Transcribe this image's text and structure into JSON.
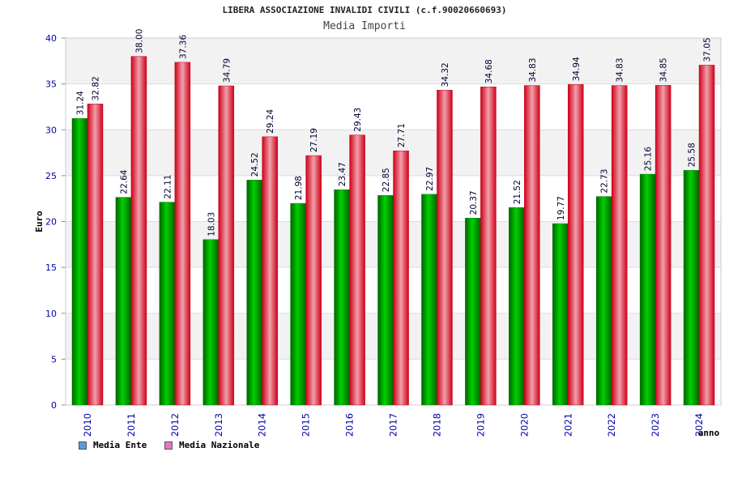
{
  "title": "LIBERA ASSOCIAZIONE INVALIDI CIVILI (c.f.90020660693)",
  "subtitle": "Media Importi",
  "colors": {
    "ente": "#00a800",
    "nazionale": "#e8001c",
    "axis_text": "#0000aa",
    "band": "#f2f2f2"
  },
  "legend": [
    {
      "label": "Media Ente",
      "color": "#5b9bd5"
    },
    {
      "label": "Media Nazionale",
      "color": "#e377c2"
    }
  ],
  "chart_data": {
    "type": "bar",
    "title": "LIBERA ASSOCIAZIONE INVALIDI CIVILI (c.f.90020660693)",
    "subtitle": "Media Importi",
    "xlabel": "anno",
    "ylabel": "Euro",
    "ylim": [
      0,
      40
    ],
    "yticks": [
      0,
      5,
      10,
      15,
      20,
      25,
      30,
      35,
      40
    ],
    "grid": true,
    "legend_position": "bottom-left",
    "categories": [
      "2010",
      "2011",
      "2012",
      "2013",
      "2014",
      "2015",
      "2016",
      "2017",
      "2018",
      "2019",
      "2020",
      "2021",
      "2022",
      "2023",
      "2024"
    ],
    "series": [
      {
        "name": "Media Ente",
        "values": [
          31.24,
          22.64,
          22.11,
          18.03,
          24.52,
          21.98,
          23.47,
          22.85,
          22.97,
          20.37,
          21.52,
          19.77,
          22.73,
          25.16,
          25.58
        ],
        "labels": [
          "31.24",
          "22.64",
          "22.11",
          "18.03",
          "24.52",
          "21.98",
          "23.47",
          "22.85",
          "22.97",
          "20.37",
          "21.52",
          "19.77",
          "22.73",
          "25.16",
          "25.58"
        ]
      },
      {
        "name": "Media Nazionale",
        "values": [
          32.82,
          38.0,
          37.36,
          34.79,
          29.24,
          27.19,
          29.43,
          27.71,
          34.32,
          34.68,
          34.83,
          34.94,
          34.83,
          34.85,
          37.05
        ],
        "labels": [
          "32.82",
          "38.00",
          "37.36",
          "34.79",
          "29.24",
          "27.19",
          "29.43",
          "27.71",
          "34.32",
          "34.68",
          "34.83",
          "34.94",
          "34.83",
          "34.85",
          "37.05"
        ]
      }
    ]
  }
}
